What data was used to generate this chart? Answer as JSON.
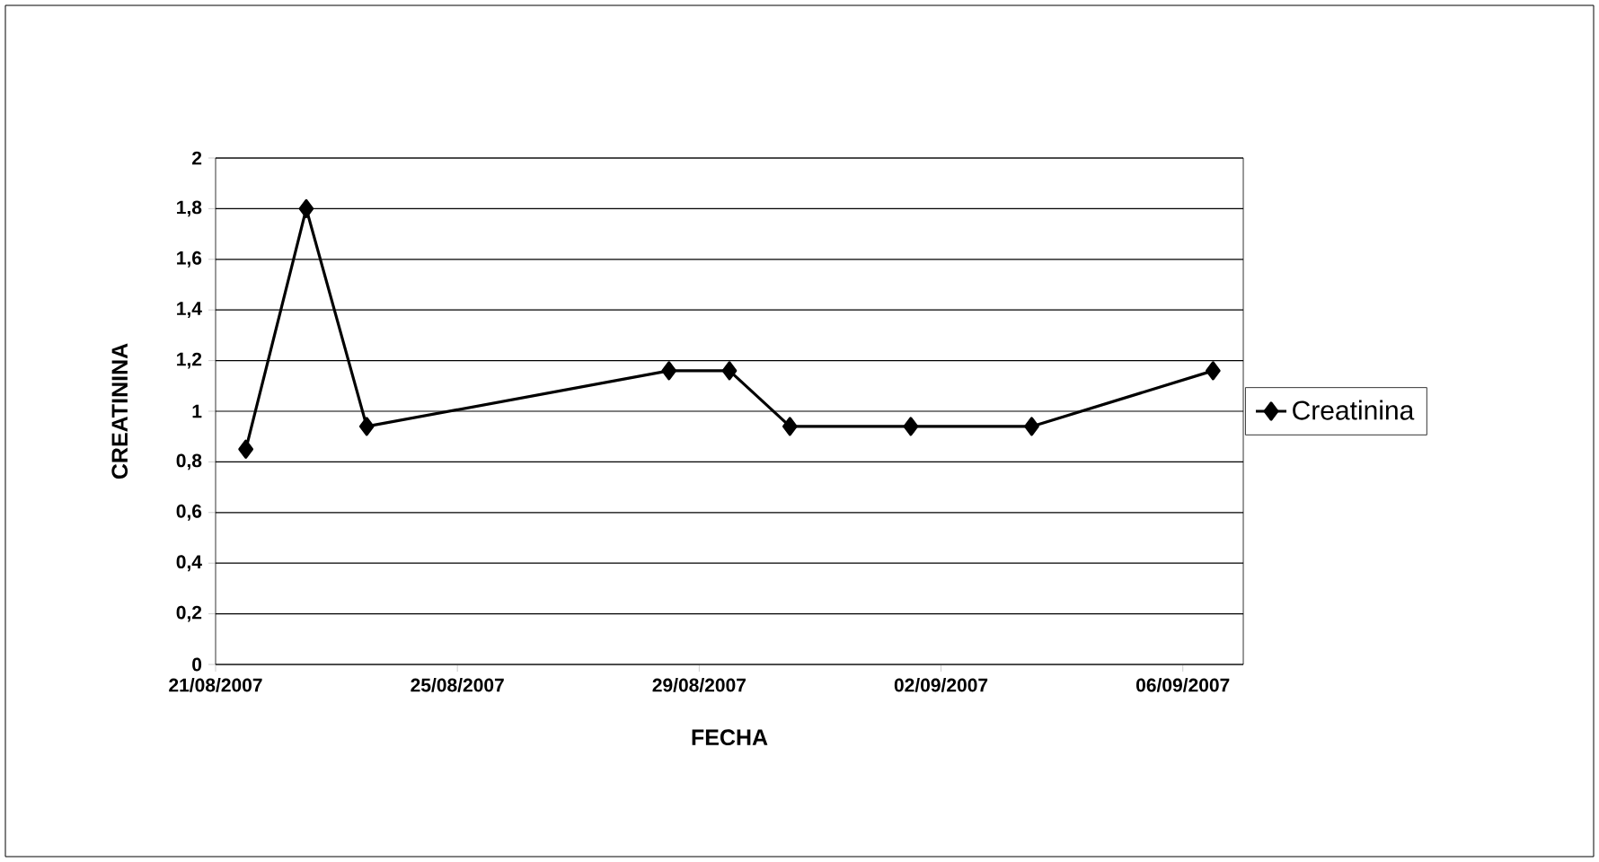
{
  "chart_data": {
    "type": "line",
    "xlabel": "FECHA",
    "ylabel": "CREATININA",
    "x": [
      "2007-08-21T12:00",
      "2007-08-22T12:00",
      "2007-08-23T12:00",
      "2007-08-28T12:00",
      "2007-08-29T12:00",
      "2007-08-30T12:00",
      "2007-09-01T12:00",
      "2007-09-03T12:00",
      "2007-09-06T12:00"
    ],
    "series": [
      {
        "name": "Creatinina",
        "color": "#000000",
        "values": [
          0.85,
          1.8,
          0.94,
          1.16,
          1.16,
          0.94,
          0.94,
          0.94,
          1.16
        ]
      }
    ],
    "xlim": [
      "2007-08-21",
      "2007-09-07"
    ],
    "xticks": [
      {
        "value": "2007-08-21",
        "label": "21/08/2007"
      },
      {
        "value": "2007-08-25",
        "label": "25/08/2007"
      },
      {
        "value": "2007-08-29",
        "label": "29/08/2007"
      },
      {
        "value": "2007-09-02",
        "label": "02/09/2007"
      },
      {
        "value": "2007-09-06",
        "label": "06/09/2007"
      }
    ],
    "ylim": [
      0,
      2
    ],
    "yticks": [
      0,
      {
        "value": 0.2,
        "label": "0,2"
      },
      {
        "value": 0.4,
        "label": "0,4"
      },
      {
        "value": 0.6,
        "label": "0,6"
      },
      {
        "value": 0.8,
        "label": "0,8"
      },
      1,
      {
        "value": 1.2,
        "label": "1,2"
      },
      {
        "value": 1.4,
        "label": "1,4"
      },
      {
        "value": 1.6,
        "label": "1,6"
      },
      {
        "value": 1.8,
        "label": "1,8"
      },
      2
    ],
    "grid": "y",
    "legend": "right",
    "marker": "diamond",
    "line_style": "solid"
  }
}
